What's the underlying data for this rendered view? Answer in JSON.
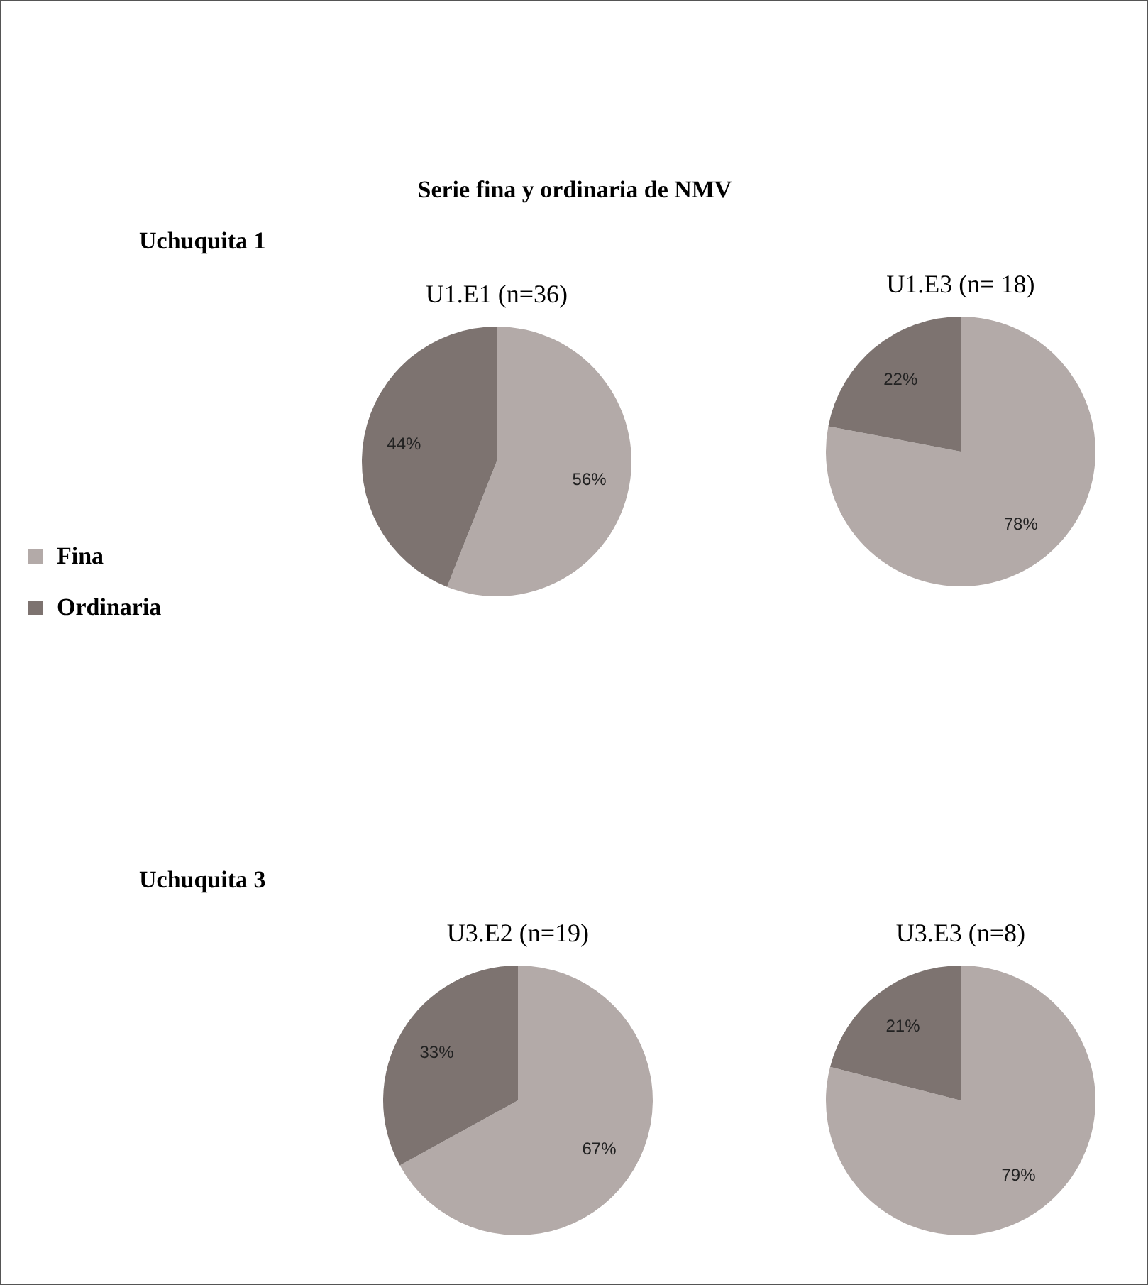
{
  "chart_data": [
    {
      "type": "pie",
      "title": "U1.E1 (n=36)",
      "annotations": [
        "Serie fina y ordinaria de NMV",
        "Uchuquita 1"
      ],
      "categories": [
        "Fina",
        "Ordinaria"
      ],
      "values": [
        56,
        44
      ],
      "value_labels": [
        "56%",
        "44%"
      ],
      "colors": [
        "#b3aaa8",
        "#7d7370"
      ],
      "legend": "left"
    },
    {
      "type": "pie",
      "title": "U1.E3 (n= 18)",
      "values": [
        78,
        22
      ],
      "value_labels": [
        "78%",
        "22%"
      ],
      "colors": [
        "#b3aaa8",
        "#7d7370"
      ]
    },
    {
      "type": "pie",
      "title": "U3.E2 (n=19)",
      "annotations": [
        "Uchuquita 3"
      ],
      "values": [
        67,
        33
      ],
      "value_labels": [
        "67%",
        "33%"
      ],
      "colors": [
        "#b3aaa8",
        "#7d7370"
      ]
    },
    {
      "type": "pie",
      "title": "U3.E3 (n=8)",
      "values": [
        79,
        21
      ],
      "value_labels": [
        "79%",
        "21%"
      ],
      "colors": [
        "#b3aaa8",
        "#7d7370"
      ]
    }
  ]
}
